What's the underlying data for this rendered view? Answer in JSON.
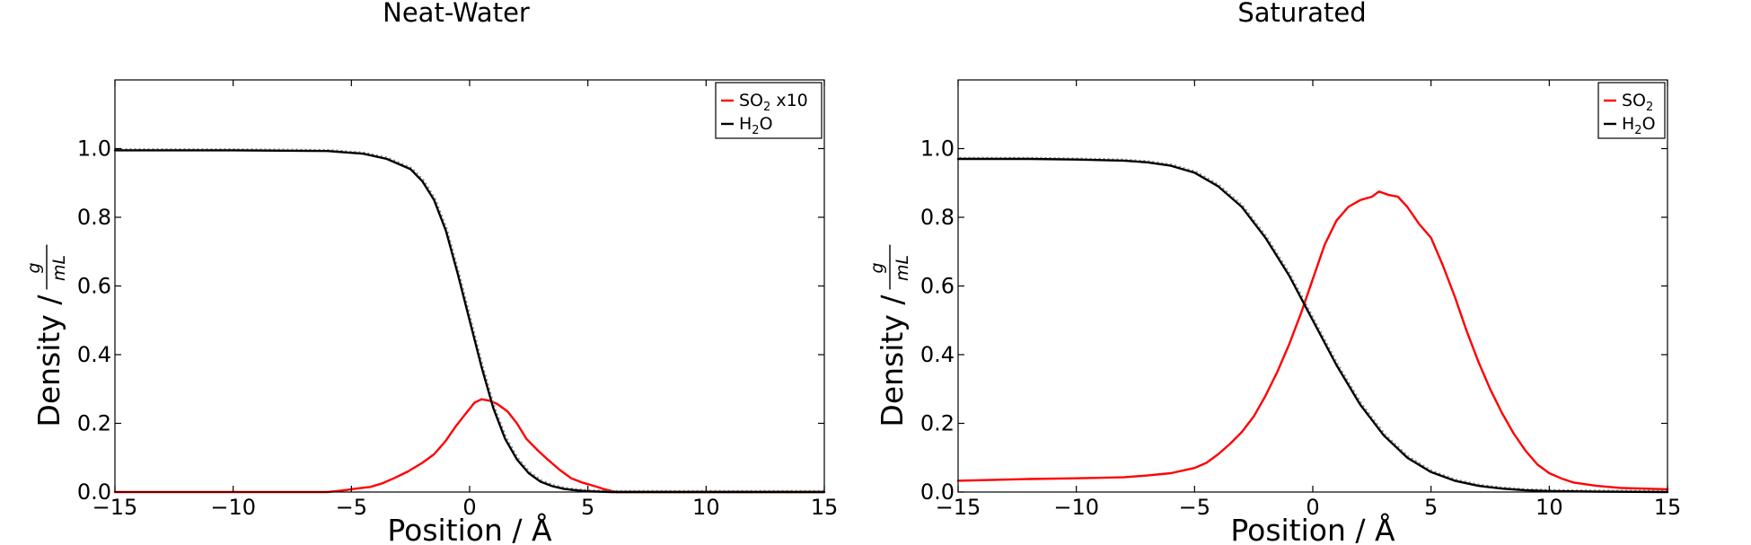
{
  "chart_data": [
    {
      "type": "line",
      "title": "Neat-Water",
      "xlabel": "Position / Å",
      "ylabel": "Density /",
      "ylabel_fraction": {
        "numerator": "g",
        "denominator": "mL"
      },
      "xlim": [
        -15,
        15
      ],
      "ylim": [
        0.0,
        1.2
      ],
      "xticks": [
        -15,
        -10,
        -5,
        0,
        5,
        10,
        15
      ],
      "xtick_labels": [
        "−15",
        "−10",
        "−5",
        "0",
        "5",
        "10",
        "15"
      ],
      "yticks": [
        0.0,
        0.2,
        0.4,
        0.6,
        0.8,
        1.0
      ],
      "ytick_labels": [
        "0.0",
        "0.2",
        "0.4",
        "0.6",
        "0.8",
        "1.0"
      ],
      "grid": false,
      "legend_position": "top-right",
      "series": [
        {
          "name": "SO2 x10",
          "legend_main": "SO",
          "legend_sub": "2",
          "legend_suffix": " x10",
          "color": "#ff0000",
          "x": [
            -15,
            -6,
            -5.2,
            -4.8,
            -4.2,
            -3.7,
            -3.2,
            -2.6,
            -2.0,
            -1.5,
            -1.0,
            -0.6,
            -0.2,
            0.2,
            0.5,
            0.9,
            1.2,
            1.6,
            2.0,
            2.4,
            2.9,
            3.3,
            3.8,
            4.3,
            4.8,
            5.3,
            5.7,
            6.2,
            15
          ],
          "y": [
            0.0,
            0.0,
            0.006,
            0.01,
            0.015,
            0.025,
            0.04,
            0.06,
            0.085,
            0.11,
            0.15,
            0.19,
            0.225,
            0.26,
            0.27,
            0.265,
            0.255,
            0.235,
            0.2,
            0.155,
            0.12,
            0.095,
            0.065,
            0.04,
            0.027,
            0.017,
            0.008,
            0.0,
            0.0
          ]
        },
        {
          "name": "H2O",
          "legend_main": "H",
          "legend_sub": "2",
          "legend_suffix": "O",
          "color": "#000000",
          "x": [
            -15,
            -10,
            -6,
            -4.5,
            -3.5,
            -2.5,
            -2.0,
            -1.5,
            -1.0,
            -0.5,
            0.0,
            0.5,
            1.0,
            1.5,
            2.0,
            2.5,
            3.0,
            3.5,
            4.0,
            4.5,
            5.0,
            6.0,
            7.0,
            10,
            15
          ],
          "y": [
            0.995,
            0.995,
            0.993,
            0.985,
            0.97,
            0.94,
            0.905,
            0.85,
            0.76,
            0.635,
            0.5,
            0.365,
            0.245,
            0.155,
            0.095,
            0.055,
            0.03,
            0.017,
            0.009,
            0.005,
            0.002,
            0.0,
            0.0,
            0.0,
            0.0
          ]
        }
      ]
    },
    {
      "type": "line",
      "title": "Saturated",
      "xlabel": "Position / Å",
      "ylabel": "Density /",
      "ylabel_fraction": {
        "numerator": "g",
        "denominator": "mL"
      },
      "xlim": [
        -15,
        15
      ],
      "ylim": [
        0.0,
        1.2
      ],
      "xticks": [
        -15,
        -10,
        -5,
        0,
        5,
        10,
        15
      ],
      "xtick_labels": [
        "−15",
        "−10",
        "−5",
        "0",
        "5",
        "10",
        "15"
      ],
      "yticks": [
        0.0,
        0.2,
        0.4,
        0.6,
        0.8,
        1.0
      ],
      "ytick_labels": [
        "0.0",
        "0.2",
        "0.4",
        "0.6",
        "0.8",
        "1.0"
      ],
      "grid": false,
      "legend_position": "top-right",
      "series": [
        {
          "name": "SO2",
          "legend_main": "SO",
          "legend_sub": "2",
          "legend_suffix": "",
          "color": "#ff0000",
          "x": [
            -15,
            -12,
            -10,
            -8,
            -7,
            -6,
            -5,
            -4.5,
            -4,
            -3.5,
            -3,
            -2.5,
            -2,
            -1.5,
            -1,
            -0.5,
            0,
            0.5,
            1,
            1.5,
            2,
            2.5,
            2.8,
            3.2,
            3.6,
            4,
            4.5,
            5,
            5.5,
            6,
            6.5,
            7,
            7.5,
            8,
            8.5,
            9,
            9.5,
            10,
            10.5,
            11,
            12,
            13,
            14,
            15
          ],
          "y": [
            0.033,
            0.038,
            0.04,
            0.043,
            0.048,
            0.055,
            0.07,
            0.085,
            0.11,
            0.14,
            0.175,
            0.22,
            0.28,
            0.35,
            0.43,
            0.52,
            0.62,
            0.72,
            0.79,
            0.83,
            0.85,
            0.86,
            0.875,
            0.865,
            0.86,
            0.83,
            0.78,
            0.74,
            0.66,
            0.57,
            0.47,
            0.38,
            0.3,
            0.23,
            0.17,
            0.12,
            0.08,
            0.055,
            0.04,
            0.028,
            0.018,
            0.012,
            0.01,
            0.008
          ]
        },
        {
          "name": "H2O",
          "legend_main": "H",
          "legend_sub": "2",
          "legend_suffix": "O",
          "color": "#000000",
          "x": [
            -15,
            -12,
            -10,
            -8,
            -7,
            -6,
            -5,
            -4,
            -3,
            -2,
            -1,
            0,
            1,
            2,
            3,
            4,
            5,
            6,
            7,
            8,
            9,
            10,
            12,
            15
          ],
          "y": [
            0.97,
            0.97,
            0.968,
            0.965,
            0.96,
            0.95,
            0.93,
            0.89,
            0.83,
            0.74,
            0.63,
            0.5,
            0.37,
            0.255,
            0.165,
            0.1,
            0.058,
            0.033,
            0.018,
            0.01,
            0.005,
            0.003,
            0.001,
            0.0
          ]
        }
      ]
    }
  ]
}
